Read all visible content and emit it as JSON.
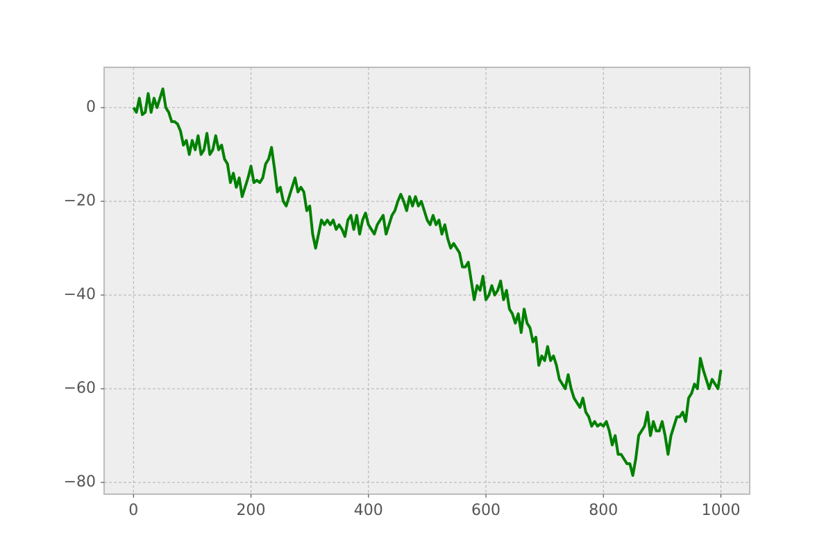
{
  "chart_data": {
    "type": "line",
    "x": [
      0,
      5,
      10,
      15,
      20,
      25,
      30,
      35,
      40,
      45,
      50,
      55,
      60,
      65,
      70,
      75,
      80,
      85,
      90,
      95,
      100,
      105,
      110,
      115,
      120,
      125,
      130,
      135,
      140,
      145,
      150,
      155,
      160,
      165,
      170,
      175,
      180,
      185,
      190,
      195,
      200,
      205,
      210,
      215,
      220,
      225,
      230,
      235,
      240,
      245,
      250,
      255,
      260,
      265,
      270,
      275,
      280,
      285,
      290,
      295,
      300,
      305,
      310,
      315,
      320,
      325,
      330,
      335,
      340,
      345,
      350,
      355,
      360,
      365,
      370,
      375,
      380,
      385,
      390,
      395,
      400,
      405,
      410,
      415,
      420,
      425,
      430,
      435,
      440,
      445,
      450,
      455,
      460,
      465,
      470,
      475,
      480,
      485,
      490,
      495,
      500,
      505,
      510,
      515,
      520,
      525,
      530,
      535,
      540,
      545,
      550,
      555,
      560,
      565,
      570,
      575,
      580,
      585,
      590,
      595,
      600,
      605,
      610,
      615,
      620,
      625,
      630,
      635,
      640,
      645,
      650,
      655,
      660,
      665,
      670,
      675,
      680,
      685,
      690,
      695,
      700,
      705,
      710,
      715,
      720,
      725,
      730,
      735,
      740,
      745,
      750,
      755,
      760,
      765,
      770,
      775,
      780,
      785,
      790,
      795,
      800,
      805,
      810,
      815,
      820,
      825,
      830,
      835,
      840,
      845,
      850,
      855,
      860,
      865,
      870,
      875,
      880,
      885,
      890,
      895,
      900,
      905,
      910,
      915,
      920,
      925,
      930,
      935,
      940,
      945,
      950,
      955,
      960,
      965,
      970,
      975,
      980,
      985,
      990,
      995,
      1000
    ],
    "series": [
      {
        "color": "#008000",
        "values": [
          0,
          -1,
          2,
          -1.5,
          -1,
          3,
          -1,
          2,
          0,
          2,
          4,
          0,
          -1,
          -3,
          -3,
          -3.5,
          -5,
          -8,
          -7,
          -10,
          -7,
          -9,
          -6,
          -10,
          -9,
          -5.5,
          -10,
          -9,
          -6,
          -9,
          -8,
          -11,
          -12,
          -16,
          -14,
          -17,
          -15,
          -19,
          -17,
          -15,
          -12.5,
          -16,
          -15.5,
          -16,
          -15,
          -12,
          -11,
          -8.5,
          -13,
          -18,
          -17,
          -20,
          -21,
          -19,
          -17,
          -15,
          -18,
          -17,
          -18,
          -22,
          -21,
          -27,
          -30,
          -27,
          -24,
          -25,
          -24,
          -25,
          -24,
          -26,
          -25,
          -26,
          -27.5,
          -24,
          -23,
          -26,
          -23,
          -27,
          -24,
          -22.5,
          -25,
          -26,
          -27,
          -25,
          -24,
          -23,
          -27,
          -25,
          -23,
          -22,
          -20,
          -18.5,
          -20,
          -22,
          -19,
          -21,
          -19,
          -21,
          -20,
          -22,
          -24,
          -25,
          -23,
          -25,
          -24,
          -27,
          -25,
          -28,
          -30,
          -29,
          -30,
          -31,
          -34,
          -34,
          -33,
          -37,
          -41,
          -38,
          -39,
          -36,
          -41,
          -40,
          -38,
          -40,
          -39,
          -37,
          -41,
          -39,
          -43,
          -44,
          -46,
          -44,
          -48,
          -43,
          -46,
          -47,
          -50,
          -49,
          -55,
          -53,
          -54,
          -51,
          -54,
          -53,
          -55,
          -58,
          -59,
          -60,
          -57,
          -60,
          -62,
          -63,
          -64,
          -62,
          -65,
          -66,
          -68,
          -67,
          -68,
          -67.5,
          -68,
          -67,
          -69,
          -72,
          -70,
          -74,
          -74,
          -75,
          -76,
          -76,
          -78.5,
          -75,
          -70,
          -69,
          -68,
          -65,
          -70,
          -67,
          -69,
          -69,
          -67,
          -70,
          -74,
          -70,
          -68,
          -66,
          -66,
          -65,
          -67,
          -62,
          -61,
          -59,
          -60,
          -53.5,
          -56,
          -58,
          -60,
          -58,
          -59,
          -60,
          -56
        ]
      }
    ],
    "xlim": [
      -50,
      1049
    ],
    "ylim": [
      -82.5,
      8.6
    ],
    "xticks": [
      0,
      200,
      400,
      600,
      800,
      1000
    ],
    "yticks": [
      {
        "value": -80,
        "label": "−80"
      },
      {
        "value": -60,
        "label": "−60"
      },
      {
        "value": -40,
        "label": "−40"
      },
      {
        "value": -20,
        "label": "−20"
      },
      0
    ],
    "grid": true
  }
}
